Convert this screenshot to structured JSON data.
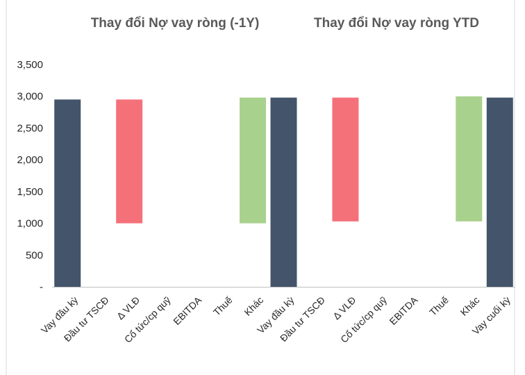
{
  "chart_data": {
    "type": "bar",
    "subtype": "waterfall",
    "titles": [
      "Thay đổi Nợ vay ròng (-1Y)",
      "Thay đổi Nợ vay ròng YTD"
    ],
    "ylim": [
      0,
      3500
    ],
    "yticks": [
      {
        "value": 0,
        "label": "-"
      },
      {
        "value": 500,
        "label": "500"
      },
      {
        "value": 1000,
        "label": "1,000"
      },
      {
        "value": 1500,
        "label": "1,500"
      },
      {
        "value": 2000,
        "label": "2,000"
      },
      {
        "value": 2500,
        "label": "2,500"
      },
      {
        "value": 3000,
        "label": "3,000"
      },
      {
        "value": 3500,
        "label": "3,500"
      }
    ],
    "grid": false,
    "legend": "none",
    "colors": {
      "total": "#44546a",
      "increase": "#f4717a",
      "decrease": "#a9d18e",
      "axis": "#bfbfbf",
      "frame": "#d9d9d9"
    },
    "categories": [
      "Vay đầu kỳ",
      "Đầu tư TSCĐ",
      "Δ VLĐ",
      "Cổ tức/cp quỹ",
      "EBITDA",
      "Thuế",
      "Khác",
      "Vay đầu kỳ",
      "Đầu tư TSCĐ",
      "Δ VLĐ",
      "Cổ tức/cp quỹ",
      "EBITDA",
      "Thuế",
      "Khác",
      "Vay cuối kỳ"
    ],
    "bars": [
      {
        "kind": "total",
        "start": 0,
        "end": 2950
      },
      {
        "kind": "none",
        "start": 0,
        "end": 0
      },
      {
        "kind": "increase",
        "start": 1000,
        "end": 2950
      },
      {
        "kind": "none",
        "start": 0,
        "end": 0
      },
      {
        "kind": "none",
        "start": 0,
        "end": 0
      },
      {
        "kind": "none",
        "start": 0,
        "end": 0
      },
      {
        "kind": "decrease",
        "start": 1000,
        "end": 2980
      },
      {
        "kind": "total",
        "start": 0,
        "end": 2980
      },
      {
        "kind": "none",
        "start": 0,
        "end": 0
      },
      {
        "kind": "increase",
        "start": 1030,
        "end": 2980
      },
      {
        "kind": "none",
        "start": 0,
        "end": 0
      },
      {
        "kind": "none",
        "start": 0,
        "end": 0
      },
      {
        "kind": "none",
        "start": 0,
        "end": 0
      },
      {
        "kind": "decrease",
        "start": 1030,
        "end": 3000
      },
      {
        "kind": "total",
        "start": 0,
        "end": 2980
      }
    ]
  }
}
